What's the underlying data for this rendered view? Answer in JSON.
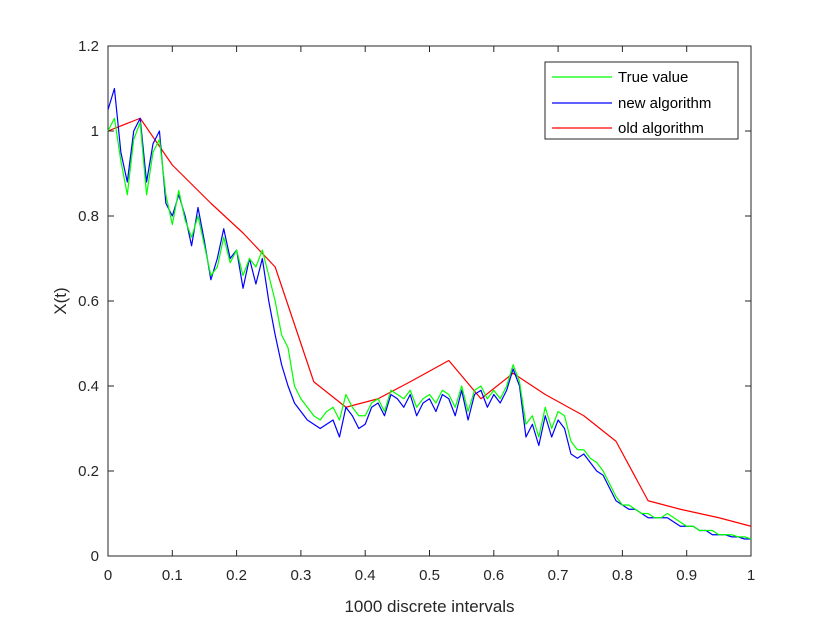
{
  "chart_data": {
    "type": "line",
    "title": "",
    "xlabel": "1000 discrete intervals",
    "ylabel": "X(t)",
    "xlim": [
      0,
      1
    ],
    "ylim": [
      0,
      1.2
    ],
    "xticks": [
      0,
      0.1,
      0.2,
      0.3,
      0.4,
      0.5,
      0.6,
      0.7,
      0.8,
      0.9,
      1
    ],
    "xtick_labels": [
      "0",
      "0.1",
      "0.2",
      "0.3",
      "0.4",
      "0.5",
      "0.6",
      "0.7",
      "0.8",
      "0.9",
      "1"
    ],
    "yticks": [
      0,
      0.2,
      0.4,
      0.6,
      0.8,
      1,
      1.2
    ],
    "ytick_labels": [
      "0",
      "0.2",
      "0.4",
      "0.6",
      "0.8",
      "1",
      "1.2"
    ],
    "grid": false,
    "legend_position": "top-right",
    "series": [
      {
        "name": "True value",
        "color": "#00ff00",
        "x": [
          0,
          0.01,
          0.02,
          0.03,
          0.04,
          0.05,
          0.06,
          0.07,
          0.08,
          0.09,
          0.1,
          0.11,
          0.12,
          0.13,
          0.14,
          0.15,
          0.16,
          0.17,
          0.18,
          0.19,
          0.2,
          0.21,
          0.22,
          0.23,
          0.24,
          0.25,
          0.26,
          0.27,
          0.28,
          0.29,
          0.3,
          0.31,
          0.32,
          0.33,
          0.34,
          0.35,
          0.36,
          0.37,
          0.38,
          0.39,
          0.4,
          0.41,
          0.42,
          0.43,
          0.44,
          0.45,
          0.46,
          0.47,
          0.48,
          0.49,
          0.5,
          0.51,
          0.52,
          0.53,
          0.54,
          0.55,
          0.56,
          0.57,
          0.58,
          0.59,
          0.6,
          0.61,
          0.62,
          0.63,
          0.64,
          0.65,
          0.66,
          0.67,
          0.68,
          0.69,
          0.7,
          0.71,
          0.72,
          0.73,
          0.74,
          0.75,
          0.76,
          0.77,
          0.78,
          0.79,
          0.8,
          0.81,
          0.82,
          0.83,
          0.84,
          0.85,
          0.86,
          0.87,
          0.88,
          0.89,
          0.9,
          0.91,
          0.92,
          0.93,
          0.94,
          0.95,
          0.96,
          0.97,
          0.98,
          0.99,
          1
        ],
        "values": [
          1.0,
          1.03,
          0.93,
          0.85,
          0.98,
          1.02,
          0.85,
          0.95,
          0.98,
          0.85,
          0.78,
          0.86,
          0.79,
          0.75,
          0.8,
          0.73,
          0.66,
          0.68,
          0.75,
          0.69,
          0.72,
          0.66,
          0.7,
          0.68,
          0.72,
          0.66,
          0.6,
          0.52,
          0.49,
          0.4,
          0.37,
          0.35,
          0.33,
          0.32,
          0.34,
          0.35,
          0.32,
          0.38,
          0.35,
          0.33,
          0.33,
          0.36,
          0.37,
          0.34,
          0.39,
          0.38,
          0.37,
          0.39,
          0.35,
          0.37,
          0.38,
          0.36,
          0.39,
          0.38,
          0.35,
          0.4,
          0.34,
          0.39,
          0.4,
          0.37,
          0.39,
          0.37,
          0.4,
          0.45,
          0.41,
          0.31,
          0.33,
          0.28,
          0.35,
          0.3,
          0.34,
          0.33,
          0.27,
          0.25,
          0.25,
          0.23,
          0.22,
          0.2,
          0.17,
          0.14,
          0.12,
          0.12,
          0.11,
          0.1,
          0.1,
          0.09,
          0.09,
          0.1,
          0.09,
          0.08,
          0.07,
          0.07,
          0.06,
          0.06,
          0.06,
          0.05,
          0.05,
          0.05,
          0.045,
          0.045,
          0.04
        ]
      },
      {
        "name": "new algorithm",
        "color": "#0000ff",
        "x": [
          0,
          0.01,
          0.02,
          0.03,
          0.04,
          0.05,
          0.06,
          0.07,
          0.08,
          0.09,
          0.1,
          0.11,
          0.12,
          0.13,
          0.14,
          0.15,
          0.16,
          0.17,
          0.18,
          0.19,
          0.2,
          0.21,
          0.22,
          0.23,
          0.24,
          0.25,
          0.26,
          0.27,
          0.28,
          0.29,
          0.3,
          0.31,
          0.32,
          0.33,
          0.34,
          0.35,
          0.36,
          0.37,
          0.38,
          0.39,
          0.4,
          0.41,
          0.42,
          0.43,
          0.44,
          0.45,
          0.46,
          0.47,
          0.48,
          0.49,
          0.5,
          0.51,
          0.52,
          0.53,
          0.54,
          0.55,
          0.56,
          0.57,
          0.58,
          0.59,
          0.6,
          0.61,
          0.62,
          0.63,
          0.64,
          0.65,
          0.66,
          0.67,
          0.68,
          0.69,
          0.7,
          0.71,
          0.72,
          0.73,
          0.74,
          0.75,
          0.76,
          0.77,
          0.78,
          0.79,
          0.8,
          0.81,
          0.82,
          0.83,
          0.84,
          0.85,
          0.86,
          0.87,
          0.88,
          0.89,
          0.9,
          0.91,
          0.92,
          0.93,
          0.94,
          0.95,
          0.96,
          0.97,
          0.98,
          0.99,
          1
        ],
        "values": [
          1.05,
          1.1,
          0.95,
          0.88,
          1.0,
          1.03,
          0.88,
          0.97,
          1.0,
          0.83,
          0.8,
          0.85,
          0.8,
          0.73,
          0.82,
          0.74,
          0.65,
          0.7,
          0.77,
          0.7,
          0.72,
          0.63,
          0.7,
          0.64,
          0.7,
          0.6,
          0.52,
          0.45,
          0.4,
          0.36,
          0.34,
          0.32,
          0.31,
          0.3,
          0.31,
          0.32,
          0.28,
          0.35,
          0.33,
          0.3,
          0.31,
          0.35,
          0.36,
          0.33,
          0.38,
          0.37,
          0.35,
          0.38,
          0.33,
          0.36,
          0.37,
          0.34,
          0.38,
          0.37,
          0.33,
          0.39,
          0.32,
          0.38,
          0.39,
          0.35,
          0.38,
          0.36,
          0.39,
          0.44,
          0.4,
          0.28,
          0.31,
          0.26,
          0.33,
          0.28,
          0.32,
          0.3,
          0.24,
          0.23,
          0.24,
          0.22,
          0.2,
          0.19,
          0.16,
          0.13,
          0.12,
          0.11,
          0.11,
          0.1,
          0.09,
          0.09,
          0.09,
          0.09,
          0.08,
          0.07,
          0.07,
          0.07,
          0.06,
          0.06,
          0.05,
          0.05,
          0.05,
          0.045,
          0.045,
          0.04,
          0.04
        ]
      },
      {
        "name": "old algorithm",
        "color": "#ff0000",
        "x": [
          0,
          0.05,
          0.1,
          0.16,
          0.21,
          0.26,
          0.32,
          0.37,
          0.42,
          0.47,
          0.53,
          0.58,
          0.63,
          0.68,
          0.74,
          0.79,
          0.84,
          0.89,
          0.95,
          1.0
        ],
        "values": [
          1.0,
          1.03,
          0.92,
          0.83,
          0.76,
          0.68,
          0.41,
          0.35,
          0.37,
          0.41,
          0.46,
          0.37,
          0.43,
          0.38,
          0.33,
          0.27,
          0.13,
          0.11,
          0.09,
          0.07
        ]
      }
    ]
  }
}
